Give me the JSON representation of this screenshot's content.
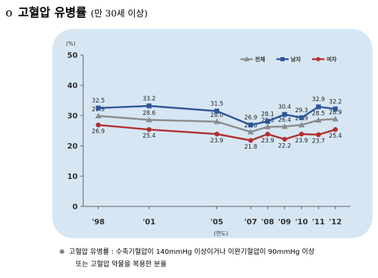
{
  "heading": {
    "bullet": "o",
    "title": "고혈압 유병률",
    "subtitle": "(만 30세 이상)"
  },
  "chart_data": {
    "type": "line",
    "y_unit_label": "(%)",
    "x_axis_label": "(연도)",
    "categories": [
      "'98",
      "'01",
      "'05",
      "'07",
      "'08",
      "'09",
      "'10",
      "'11",
      "'12"
    ],
    "category_years": [
      1998,
      2001,
      2005,
      2007,
      2008,
      2009,
      2010,
      2011,
      2012
    ],
    "ylim": [
      0,
      50
    ],
    "yticks": [
      "0",
      "10",
      "20",
      "30",
      "40",
      "50"
    ],
    "grid": false,
    "legend_position": "top-right",
    "series": [
      {
        "name": "전체",
        "color": "#8c8c8c",
        "marker": "triangle",
        "values": [
          29.9,
          28.6,
          28.0,
          24.6,
          26.3,
          26.4,
          26.9,
          28.5,
          28.9
        ],
        "labels": [
          "29.9",
          "28.6",
          "28.0",
          "24.6",
          "26.3",
          "26.4",
          "26.9",
          "28.5",
          "28.9"
        ]
      },
      {
        "name": "남자",
        "color": "#2e5597",
        "marker": "square",
        "values": [
          32.5,
          33.2,
          31.5,
          26.9,
          28.1,
          30.4,
          29.3,
          32.9,
          32.2
        ],
        "labels": [
          "32.5",
          "33.2",
          "31.5",
          "26.9",
          "28.1",
          "30.4",
          "29.3",
          "32.9",
          "32.2"
        ]
      },
      {
        "name": "여자",
        "color": "#b0302f",
        "marker": "circle",
        "values": [
          26.9,
          25.4,
          23.9,
          21.8,
          23.9,
          22.2,
          23.9,
          23.7,
          25.4
        ],
        "labels": [
          "26.9",
          "25.4",
          "23.9",
          "21.8",
          "23.9",
          "22.2",
          "23.9",
          "23.7",
          "25.4"
        ]
      }
    ]
  },
  "footnote": {
    "mark": "※",
    "line1": "고혈압 유병률 : 수축기혈압이 140mmHg 이상이거나 이완기혈압이 90mmHg 이상",
    "line2": "또는 고혈압 약물을 복용한 분율"
  }
}
